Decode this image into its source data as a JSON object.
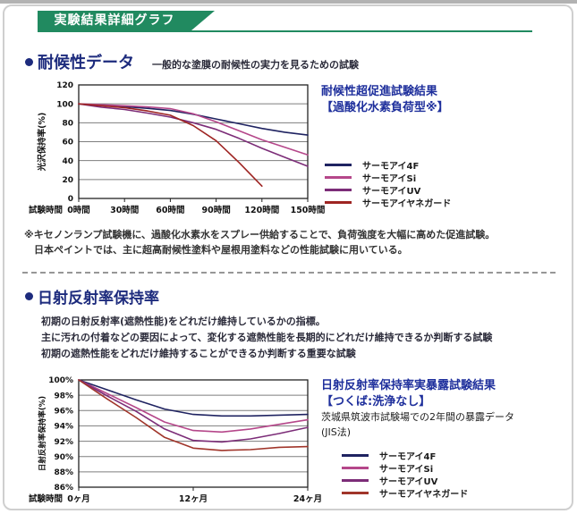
{
  "colors": {
    "header_green": "#218a60",
    "section_title_navy": "#1d2b7d",
    "chart_title_blue": "#1e2f9c"
  },
  "header": {
    "banner_title": "実験結果詳細グラフ"
  },
  "section1": {
    "title": "耐候性データ",
    "subtitle": "一般的な塗膜の耐候性の実力を見るための試験",
    "result_title_line1": "耐候性超促進試験結果",
    "result_title_line2": "【過酸化水素負荷型※】",
    "footnote_line1": "※キセノンランプ試験機に、過酸化水素水をスプレー供給することで、負荷強度を大幅に高めた促進試験。",
    "footnote_line2": "日本ペイントでは、主に超高耐候性塗料や屋根用塗料などの性能試験に用いている。"
  },
  "section2": {
    "title": "日射反射率保持率",
    "desc_line1": "初期の日射反射率(遮熱性能)をどれだけ維持しているかの指標。",
    "desc_line2": "主に汚れの付着などの要因によって、変化する遮熱性能を長期的にどれだけ維持できるか判断する試験",
    "desc_line3": "初期の遮熱性能をどれだけ維持することができるか判断する重要な試験",
    "result_title_line1": "日射反射率保持率実暴露試験結果",
    "result_title_line2": "【つくば:洗浄なし】",
    "result_note_line1": "茨城県筑波市試験場での2年間の暴露データ",
    "result_note_line2": "(JIS法)"
  },
  "chart_data": [
    {
      "type": "line",
      "title": "耐候性超促進試験結果【過酸化水素負荷型※】",
      "xlabel": "試験時間",
      "ylabel": "光沢保持率(%)",
      "xlim": [
        0,
        150
      ],
      "ylim": [
        0,
        120
      ],
      "y_ticks": [
        0,
        20,
        40,
        60,
        80,
        100,
        120
      ],
      "y_tick_suffix": "",
      "x_tick_values": [
        0,
        30,
        60,
        90,
        120,
        150
      ],
      "x_tick_labels": [
        "0時間",
        "30時間",
        "60時間",
        "90時間",
        "120時間",
        "150時間"
      ],
      "grid": true,
      "legend_position": "right",
      "series": [
        {
          "name": "サーモアイ4F",
          "color": "#1f2361",
          "x": [
            0,
            15,
            30,
            45,
            60,
            75,
            90,
            105,
            120,
            135,
            150
          ],
          "y": [
            100,
            98.5,
            97,
            95.2,
            93,
            89,
            84,
            79,
            74,
            70,
            67
          ]
        },
        {
          "name": "サーモアイSi",
          "color": "#b5478a",
          "x": [
            0,
            15,
            30,
            45,
            60,
            75,
            90,
            105,
            120,
            135,
            150
          ],
          "y": [
            100,
            99,
            98,
            96.8,
            95,
            89.5,
            81,
            71.5,
            62,
            54,
            46
          ]
        },
        {
          "name": "サーモアイUV",
          "color": "#7c2d78",
          "x": [
            0,
            15,
            30,
            45,
            60,
            75,
            90,
            105,
            120,
            135,
            150
          ],
          "y": [
            100,
            96.5,
            94,
            90.2,
            86,
            80,
            73,
            63.5,
            53,
            43.5,
            34
          ]
        },
        {
          "name": "サーモアイヤネガード",
          "color": "#9e2422",
          "x": [
            0,
            15,
            30,
            45,
            60,
            75,
            90,
            105,
            120
          ],
          "y": [
            100,
            98,
            96,
            92.5,
            88,
            77,
            61,
            38,
            13
          ]
        }
      ]
    },
    {
      "type": "line",
      "title": "日射反射率保持率実暴露試験結果【つくば:洗浄なし】",
      "xlabel": "試験時間",
      "ylabel": "日射反射率保持率(%)",
      "xlim": [
        0,
        24
      ],
      "ylim": [
        86,
        100
      ],
      "y_ticks": [
        86,
        88,
        90,
        92,
        94,
        96,
        98,
        100
      ],
      "y_tick_suffix": "%",
      "x_tick_values": [
        0,
        12,
        24
      ],
      "x_tick_labels": [
        "0ヶ月",
        "12ヶ月",
        "24ヶ月"
      ],
      "grid": true,
      "legend_position": "right",
      "series": [
        {
          "name": "サーモアイ4F",
          "color": "#1f2361",
          "x": [
            0,
            3,
            6,
            9,
            12,
            15,
            18,
            21,
            24
          ],
          "y": [
            100,
            98.7,
            97.4,
            96.2,
            95.5,
            95.3,
            95.3,
            95.4,
            95.5
          ]
        },
        {
          "name": "サーモアイSi",
          "color": "#b5478a",
          "x": [
            0,
            3,
            6,
            9,
            12,
            15,
            18,
            21,
            24
          ],
          "y": [
            100,
            98.2,
            96.4,
            94.5,
            93.4,
            93.2,
            93.6,
            94.2,
            94.8
          ]
        },
        {
          "name": "サーモアイUV",
          "color": "#7c2d78",
          "x": [
            0,
            3,
            6,
            9,
            12,
            15,
            18,
            21,
            24
          ],
          "y": [
            100,
            97.9,
            95.9,
            93.6,
            92.1,
            91.9,
            92.3,
            93.0,
            93.8
          ]
        },
        {
          "name": "サーモアイヤネガード",
          "color": "#a0352a",
          "x": [
            0,
            3,
            6,
            9,
            12,
            15,
            18,
            21,
            24
          ],
          "y": [
            100,
            97.5,
            95.1,
            92.5,
            91.1,
            90.8,
            90.9,
            91.2,
            91.3
          ]
        }
      ]
    }
  ]
}
